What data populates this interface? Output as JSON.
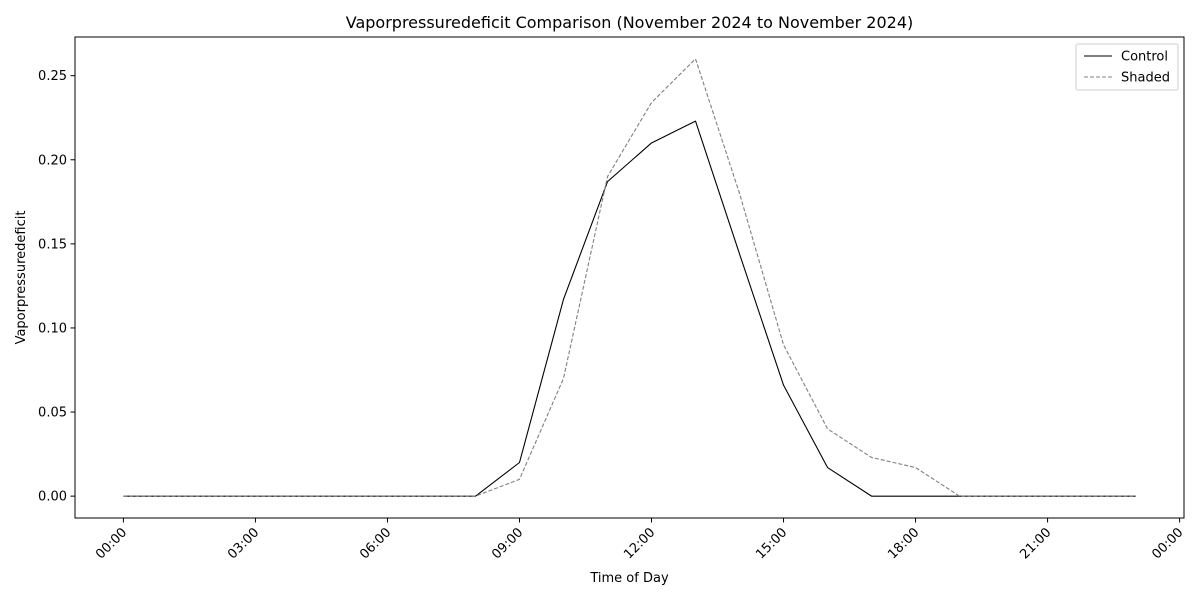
{
  "chart_data": {
    "type": "line",
    "title": "Vaporpressuredeficit Comparison (November 2024 to November 2024)",
    "xlabel": "Time of Day",
    "ylabel": "Vaporpressuredeficit",
    "x_hours": [
      0,
      1,
      2,
      3,
      4,
      5,
      6,
      7,
      8,
      9,
      10,
      11,
      12,
      13,
      14,
      15,
      16,
      17,
      18,
      19,
      20,
      21,
      22,
      23
    ],
    "xlim_hours": [
      -1.1,
      24.1
    ],
    "ylim": [
      -0.013,
      0.273
    ],
    "x_ticks": [
      {
        "hour": 0,
        "label": "00:00"
      },
      {
        "hour": 3,
        "label": "03:00"
      },
      {
        "hour": 6,
        "label": "06:00"
      },
      {
        "hour": 9,
        "label": "09:00"
      },
      {
        "hour": 12,
        "label": "12:00"
      },
      {
        "hour": 15,
        "label": "15:00"
      },
      {
        "hour": 18,
        "label": "18:00"
      },
      {
        "hour": 21,
        "label": "21:00"
      },
      {
        "hour": 24,
        "label": "00:00"
      }
    ],
    "y_ticks": [
      {
        "value": 0.0,
        "label": "0.00"
      },
      {
        "value": 0.05,
        "label": "0.05"
      },
      {
        "value": 0.1,
        "label": "0.10"
      },
      {
        "value": 0.15,
        "label": "0.15"
      },
      {
        "value": 0.2,
        "label": "0.20"
      },
      {
        "value": 0.25,
        "label": "0.25"
      }
    ],
    "series": [
      {
        "name": "Control",
        "color": "#000000",
        "dashed": false,
        "values": [
          0,
          0,
          0,
          0,
          0,
          0,
          0,
          0,
          0,
          0.02,
          0.117,
          0.187,
          0.21,
          0.223,
          0.144,
          0.066,
          0.017,
          0,
          0,
          0,
          0,
          0,
          0,
          0
        ]
      },
      {
        "name": "Shaded",
        "color": "#808080",
        "dashed": true,
        "values": [
          0,
          0,
          0,
          0,
          0,
          0,
          0,
          0,
          0,
          0.01,
          0.07,
          0.19,
          0.234,
          0.26,
          0.18,
          0.09,
          0.04,
          0.023,
          0.017,
          0,
          0,
          0,
          0,
          0
        ]
      }
    ],
    "legend_position": "top-right",
    "grid": false
  }
}
